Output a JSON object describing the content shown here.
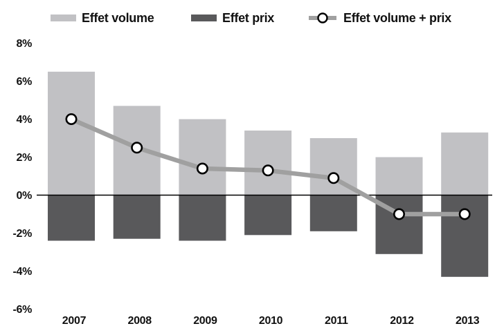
{
  "chart_data": {
    "type": "bar",
    "subtype": "bar-and-line-combo",
    "categories": [
      "2007",
      "2008",
      "2009",
      "2010",
      "2011",
      "2012",
      "2013"
    ],
    "series": [
      {
        "name": "Effet volume",
        "type": "bar",
        "color": "#c1c1c4",
        "values": [
          6.5,
          4.7,
          4.0,
          3.4,
          3.0,
          2.0,
          3.3
        ]
      },
      {
        "name": "Effet prix",
        "type": "bar",
        "color": "#59595b",
        "values": [
          -2.4,
          -2.3,
          -2.4,
          -2.1,
          -1.9,
          -3.1,
          -4.3
        ]
      },
      {
        "name": "Effet volume + prix",
        "type": "line",
        "color": "#a0a0a0",
        "marker": "open-circle-white-black",
        "values": [
          4.0,
          2.5,
          1.4,
          1.3,
          0.9,
          -1.0,
          -1.0
        ]
      }
    ],
    "title": "",
    "xlabel": "",
    "ylabel": "",
    "ylim": [
      -6,
      8
    ],
    "ytick_values": [
      8,
      6,
      4,
      2,
      0,
      -2,
      -4,
      -6
    ],
    "ytick_labels": [
      "8%",
      "6%",
      "4%",
      "2%",
      "0%",
      "-2%",
      "-4%",
      "-6%"
    ],
    "grid": false,
    "legend_position": "top",
    "zero_axis_line_color": "#000000"
  },
  "legend": {
    "items": [
      {
        "label": "Effet volume",
        "swatch": "light-gray-bar"
      },
      {
        "label": "Effet prix",
        "swatch": "dark-gray-bar"
      },
      {
        "label": "Effet volume + prix",
        "swatch": "gray-line-open-circle"
      }
    ]
  },
  "colors": {
    "bar_light": "#c1c1c4",
    "bar_dark": "#59595b",
    "line": "#a0a0a0",
    "marker_fill": "#ffffff",
    "marker_stroke": "#000000",
    "text": "#111111",
    "background": "#ffffff"
  }
}
